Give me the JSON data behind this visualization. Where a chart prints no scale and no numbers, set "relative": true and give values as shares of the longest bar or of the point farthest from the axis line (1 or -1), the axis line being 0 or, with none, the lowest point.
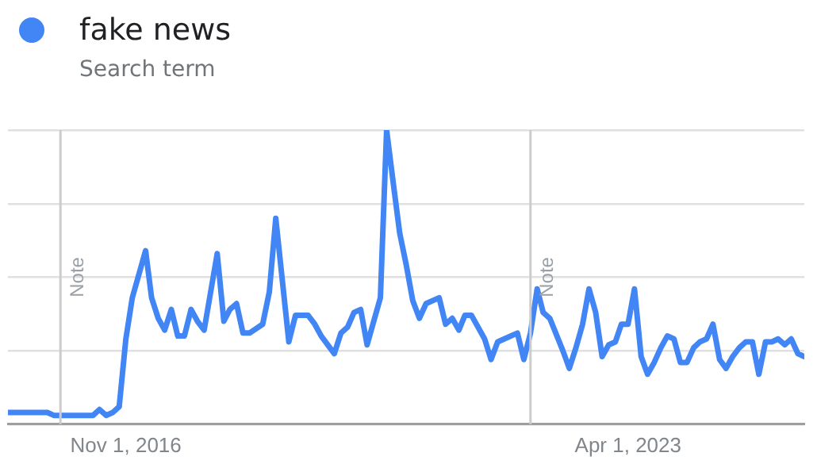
{
  "chart_data": {
    "type": "line",
    "subtitle": "Search term",
    "relative": true,
    "grid": "y",
    "legend": "top left",
    "marker": "none",
    "line_style": "solid",
    "xlim": [
      "2015-05",
      "2025-07"
    ],
    "xticks": [
      {
        "value": "2016-11-01",
        "label": "Nov 1, 2016"
      },
      {
        "value": "2023-04-01",
        "label": "Apr 1, 2023"
      }
    ],
    "ref_lines": [
      {
        "axis": "x",
        "value": "2016-01",
        "label": "Note",
        "color": "#cccccc"
      },
      {
        "axis": "x",
        "value": "2022-01",
        "label": "Note",
        "color": "#cccccc"
      }
    ],
    "series": [
      {
        "name": "fake news",
        "color": "#4285f4",
        "x": [
          "2015-05",
          "2015-11",
          "2015-12",
          "2016-06",
          "2016-07",
          "2016-08",
          "2016-09",
          "2016-10",
          "2016-11",
          "2016-12",
          "2017-02",
          "2017-03",
          "2017-04",
          "2017-05",
          "2017-06",
          "2017-07",
          "2017-08",
          "2017-09",
          "2017-10",
          "2017-11",
          "2018-01",
          "2018-02",
          "2018-03",
          "2018-04",
          "2018-05",
          "2018-06",
          "2018-08",
          "2018-09",
          "2018-10",
          "2018-12",
          "2019-01",
          "2019-03",
          "2019-04",
          "2019-05",
          "2019-07",
          "2019-08",
          "2019-09",
          "2019-10",
          "2019-11",
          "2019-12",
          "2020-01",
          "2020-02",
          "2020-03",
          "2020-04",
          "2020-05",
          "2020-06",
          "2020-07",
          "2020-08",
          "2020-09",
          "2020-11",
          "2020-12",
          "2021-01",
          "2021-02",
          "2021-03",
          "2021-04",
          "2021-06",
          "2021-07",
          "2021-08",
          "2021-09",
          "2021-11",
          "2021-12",
          "2022-01",
          "2022-02",
          "2022-03",
          "2022-04",
          "2022-06",
          "2022-07",
          "2022-08",
          "2022-09",
          "2022-10",
          "2022-11",
          "2022-12",
          "2023-01",
          "2023-02",
          "2023-03",
          "2023-04",
          "2023-05",
          "2023-06",
          "2023-07",
          "2023-08",
          "2023-09",
          "2023-10",
          "2023-11",
          "2023-12",
          "2024-01",
          "2024-02",
          "2024-03",
          "2024-04",
          "2024-05",
          "2024-06",
          "2024-07",
          "2024-08",
          "2024-09",
          "2024-10",
          "2024-11",
          "2024-12",
          "2025-01",
          "2025-02",
          "2025-03",
          "2025-04",
          "2025-05",
          "2025-06",
          "2025-07"
        ],
        "values": [
          0.04,
          0.04,
          0.03,
          0.03,
          0.05,
          0.03,
          0.04,
          0.06,
          0.29,
          0.43,
          0.59,
          0.43,
          0.36,
          0.32,
          0.39,
          0.3,
          0.3,
          0.39,
          0.35,
          0.32,
          0.58,
          0.35,
          0.39,
          0.41,
          0.31,
          0.31,
          0.34,
          0.45,
          0.7,
          0.28,
          0.37,
          0.37,
          0.34,
          0.3,
          0.24,
          0.31,
          0.33,
          0.38,
          0.39,
          0.27,
          0.35,
          0.43,
          1,
          0.82,
          0.65,
          0.54,
          0.42,
          0.36,
          0.41,
          0.43,
          0.34,
          0.36,
          0.32,
          0.37,
          0.37,
          0.29,
          0.22,
          0.28,
          0.29,
          0.31,
          0.22,
          0.31,
          0.46,
          0.38,
          0.36,
          0.25,
          0.19,
          0.26,
          0.34,
          0.46,
          0.38,
          0.23,
          0.27,
          0.28,
          0.34,
          0.34,
          0.46,
          0.23,
          0.17,
          0.21,
          0.26,
          0.3,
          0.29,
          0.21,
          0.21,
          0.26,
          0.28,
          0.29,
          0.34,
          0.22,
          0.19,
          0.23,
          0.26,
          0.28,
          0.28,
          0.17,
          0.28,
          0.28,
          0.29,
          0.27,
          0.29,
          0.24,
          0.23
        ]
      }
    ]
  }
}
